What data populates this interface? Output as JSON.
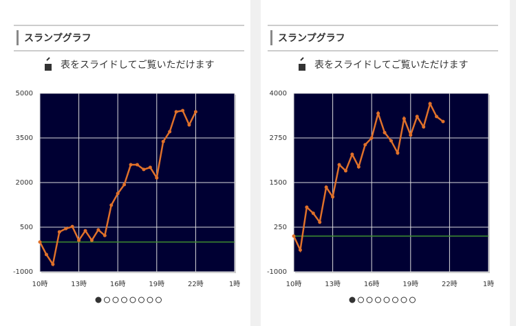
{
  "cards": [
    {
      "title": "スランプグラフ",
      "hint": "表をスライドしてご覧いただけます"
    },
    {
      "title": "スランプグラフ",
      "hint": "表をスライドしてご覧いただけます"
    }
  ],
  "chart_data": [
    {
      "type": "line",
      "color": "#e0712a",
      "baseline": 0,
      "baseline_color": "#3f8f2f",
      "grid": true,
      "x": [
        10,
        10.5,
        11,
        11.5,
        12,
        12.5,
        13,
        13.5,
        14,
        14.5,
        15,
        15.5,
        16,
        16.5,
        17,
        17.5,
        18,
        18.5,
        19,
        19.5,
        20,
        20.5,
        21,
        21.5,
        22
      ],
      "values": [
        0,
        -420,
        -750,
        340,
        450,
        520,
        60,
        380,
        60,
        410,
        220,
        1240,
        1630,
        1930,
        2600,
        2600,
        2440,
        2510,
        2160,
        3380,
        3710,
        4380,
        4420,
        3940,
        4380
      ],
      "xlim": [
        10,
        25
      ],
      "xticks": [
        {
          "value": 10,
          "label": "10時"
        },
        {
          "value": 13,
          "label": "13時"
        },
        {
          "value": 16,
          "label": "16時"
        },
        {
          "value": 19,
          "label": "19時"
        },
        {
          "value": 22,
          "label": "22時"
        },
        {
          "value": 25,
          "label": "1時"
        }
      ],
      "ylim": [
        -1000,
        5000
      ],
      "yticks": [
        -1000,
        500,
        2000,
        3500,
        5000
      ]
    },
    {
      "type": "line",
      "color": "#e0712a",
      "baseline": 0,
      "baseline_color": "#3f8f2f",
      "grid": true,
      "x": [
        10,
        10.5,
        11,
        11.5,
        12,
        12.5,
        13,
        13.5,
        14,
        14.5,
        15,
        15.5,
        16,
        16.5,
        17,
        17.5,
        18,
        18.5,
        19,
        19.5,
        20,
        20.5,
        21,
        21.5
      ],
      "values": [
        0,
        -390,
        810,
        640,
        390,
        1370,
        1100,
        2000,
        1830,
        2290,
        1940,
        2560,
        2750,
        3440,
        2900,
        2670,
        2330,
        3290,
        2830,
        3350,
        3060,
        3710,
        3350,
        3210
      ],
      "xlim": [
        10,
        25
      ],
      "xticks": [
        {
          "value": 10,
          "label": "10時"
        },
        {
          "value": 13,
          "label": "13時"
        },
        {
          "value": 16,
          "label": "16時"
        },
        {
          "value": 19,
          "label": "19時"
        },
        {
          "value": 22,
          "label": "22時"
        },
        {
          "value": 25,
          "label": "1時"
        }
      ],
      "ylim": [
        -1000,
        4000
      ],
      "yticks": [
        -1000,
        250,
        1500,
        2750,
        4000
      ]
    }
  ]
}
